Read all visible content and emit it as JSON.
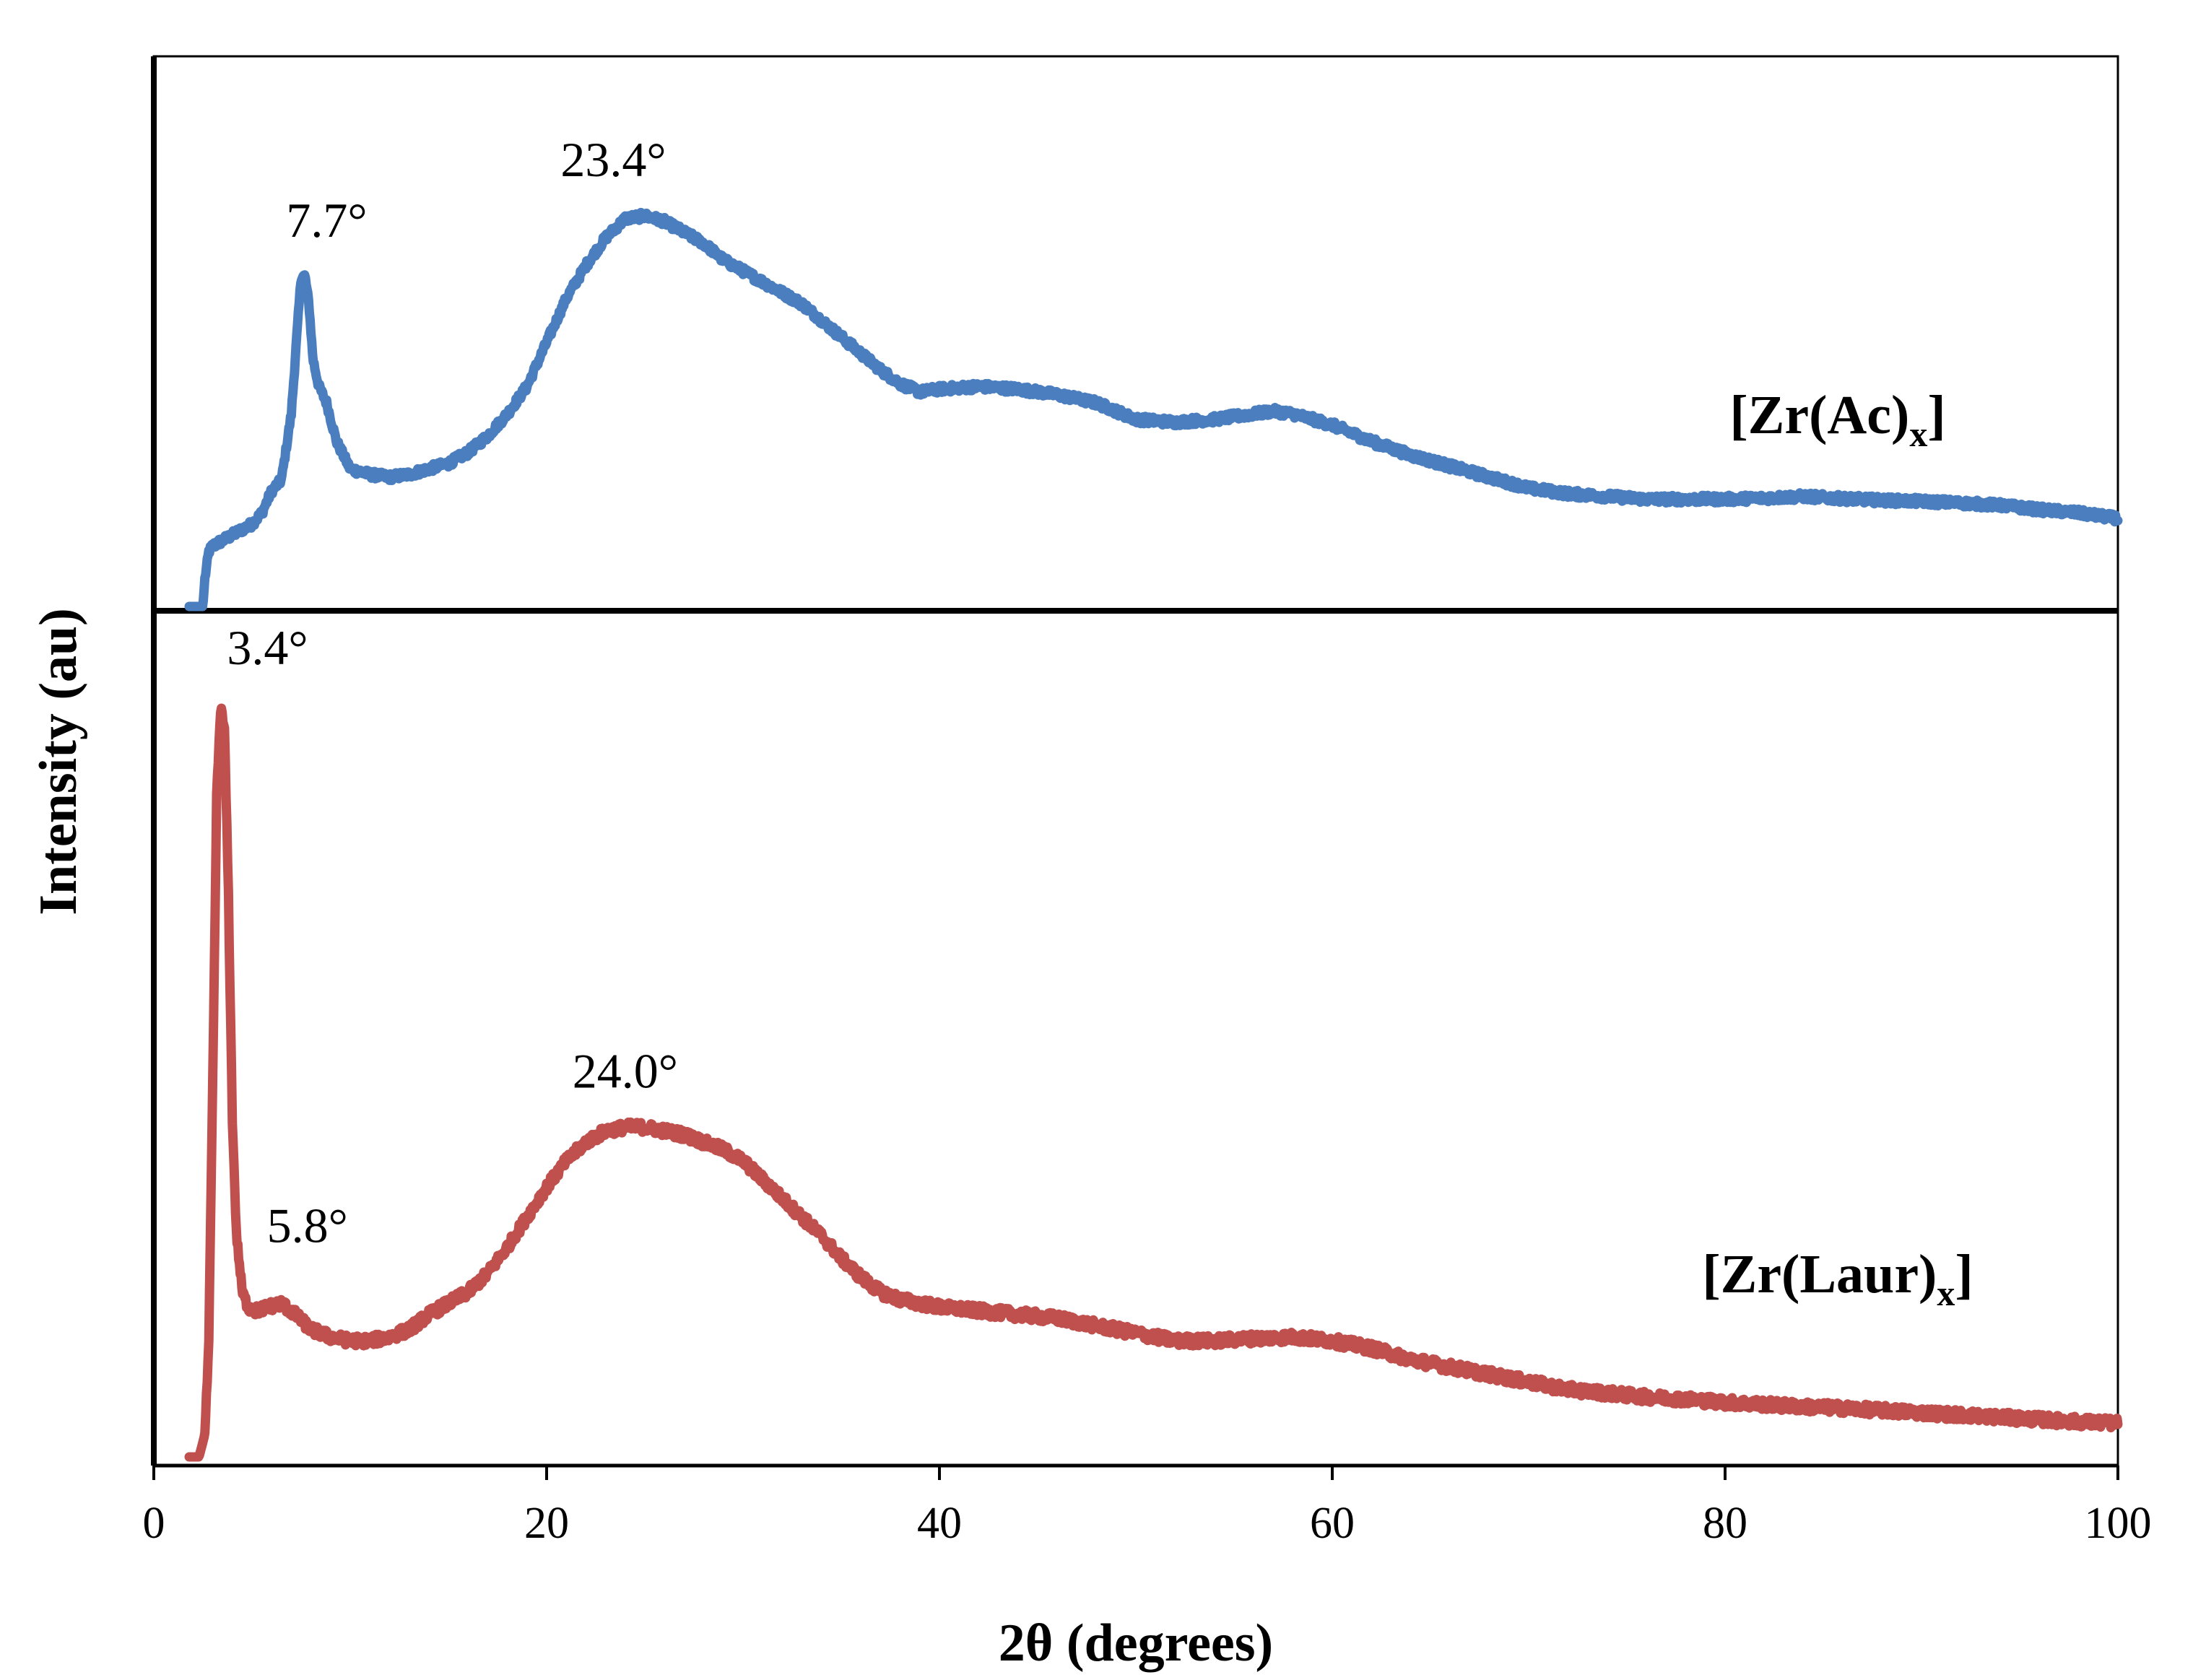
{
  "chart_data": {
    "type": "line",
    "title": "",
    "xlabel": "2θ (degrees)",
    "ylabel": "Intensity (au)",
    "xlim": [
      0,
      100
    ],
    "x_ticks": [
      0,
      20,
      40,
      60,
      80,
      100
    ],
    "x_tick_labels": [
      "0",
      "20",
      "40",
      "60",
      "80",
      "100"
    ],
    "grid": false,
    "panels": [
      {
        "name": "top",
        "series_name": "[Zr(Ac)x]",
        "label_main": "[Zr(Ac)",
        "label_sub": "x",
        "label_close": "]",
        "color": "#4a7ebf",
        "ylim": [
          0,
          100
        ],
        "x": [
          1.8,
          2.5,
          2.6,
          2.8,
          3.0,
          3.5,
          4.0,
          5.0,
          5.5,
          6.0,
          6.5,
          7.0,
          7.3,
          7.5,
          7.7,
          7.9,
          8.1,
          8.4,
          8.8,
          9.3,
          10,
          11,
          12,
          13,
          14,
          15,
          16,
          17,
          18,
          19,
          20,
          21,
          22,
          23,
          24,
          25,
          26,
          27,
          28,
          29,
          30,
          31,
          32,
          33,
          34,
          35,
          36,
          37,
          38,
          39,
          40,
          42,
          44,
          46,
          48,
          50,
          52,
          54,
          56,
          57,
          58,
          60,
          62,
          64,
          66,
          68,
          70,
          72,
          74,
          76,
          78,
          80,
          82,
          84,
          86,
          88,
          90,
          92,
          94,
          96,
          98,
          100
        ],
        "values": [
          0,
          0,
          5,
          10,
          11,
          12,
          13,
          15,
          17,
          21,
          23,
          35,
          50,
          60,
          60,
          55,
          45,
          40,
          37,
          30,
          25,
          24,
          23.5,
          24,
          25,
          26,
          28,
          31,
          35,
          40,
          48,
          56,
          62,
          67,
          70.5,
          71,
          70,
          68,
          66,
          63,
          61,
          59,
          57,
          55,
          52,
          49,
          46,
          43,
          40.5,
          39,
          39.5,
          40,
          39.5,
          38.5,
          37,
          34,
          33.5,
          34,
          35,
          35.5,
          35,
          33,
          30,
          27.5,
          25.5,
          23.5,
          21.5,
          20.5,
          20,
          19.5,
          19.5,
          19.5,
          19.7,
          20,
          19.6,
          19.3,
          19.1,
          18.8,
          18.4,
          17.6,
          17,
          16
        ],
        "annotations": [
          {
            "text": "7.7°",
            "x": 7.7,
            "y": 60
          },
          {
            "text": "23.4°",
            "x": 23.4,
            "y": 71
          }
        ]
      },
      {
        "name": "bottom",
        "series_name": "[Zr(Laur)x]",
        "label_main": "[Zr(Laur)",
        "label_sub": "x",
        "label_close": "]",
        "color": "#c0504d",
        "ylim": [
          0,
          100
        ],
        "x": [
          1.8,
          2.3,
          2.6,
          2.8,
          3.0,
          3.2,
          3.4,
          3.6,
          3.8,
          4.0,
          4.2,
          4.5,
          4.8,
          5.2,
          5.8,
          6.5,
          7.2,
          8.0,
          9.0,
          10,
          11,
          12,
          13,
          14,
          15,
          16,
          17,
          18,
          19,
          20,
          21,
          22,
          23,
          24,
          25,
          26,
          27,
          28,
          29,
          30,
          31,
          32,
          33,
          34,
          35,
          36,
          37,
          38,
          39,
          40,
          42,
          44,
          46,
          48,
          50,
          52,
          54,
          56,
          58,
          60,
          62,
          64,
          66,
          68,
          70,
          72,
          74,
          76,
          78,
          80,
          82,
          84,
          86,
          88,
          90,
          92,
          94,
          96,
          98,
          100
        ],
        "values": [
          0,
          0,
          3,
          15,
          50,
          88,
          100,
          97,
          75,
          45,
          30,
          22,
          20,
          19.5,
          20,
          20.5,
          19,
          17,
          16,
          15.5,
          15.5,
          16,
          17,
          19,
          20.5,
          22,
          24.5,
          28,
          32,
          36,
          39.5,
          42,
          43.5,
          44,
          44,
          43.5,
          43,
          42,
          41,
          39.5,
          37,
          34.5,
          32,
          29.5,
          26.5,
          24,
          22,
          21,
          20.5,
          20,
          19.5,
          19,
          18.5,
          17.5,
          16.5,
          15.5,
          15.5,
          15.8,
          16,
          15.5,
          14.5,
          13,
          12,
          11,
          10,
          9,
          8.5,
          8,
          7.7,
          7.3,
          7,
          6.7,
          6.5,
          6.2,
          5.9,
          5.6,
          5.3,
          5,
          4.7,
          4.5
        ],
        "annotations": [
          {
            "text": "3.4°",
            "x": 3.4,
            "y": 100
          },
          {
            "text": "5.8°",
            "x": 5.8,
            "y": 20
          },
          {
            "text": "24.0°",
            "x": 24.0,
            "y": 44
          }
        ]
      }
    ]
  }
}
